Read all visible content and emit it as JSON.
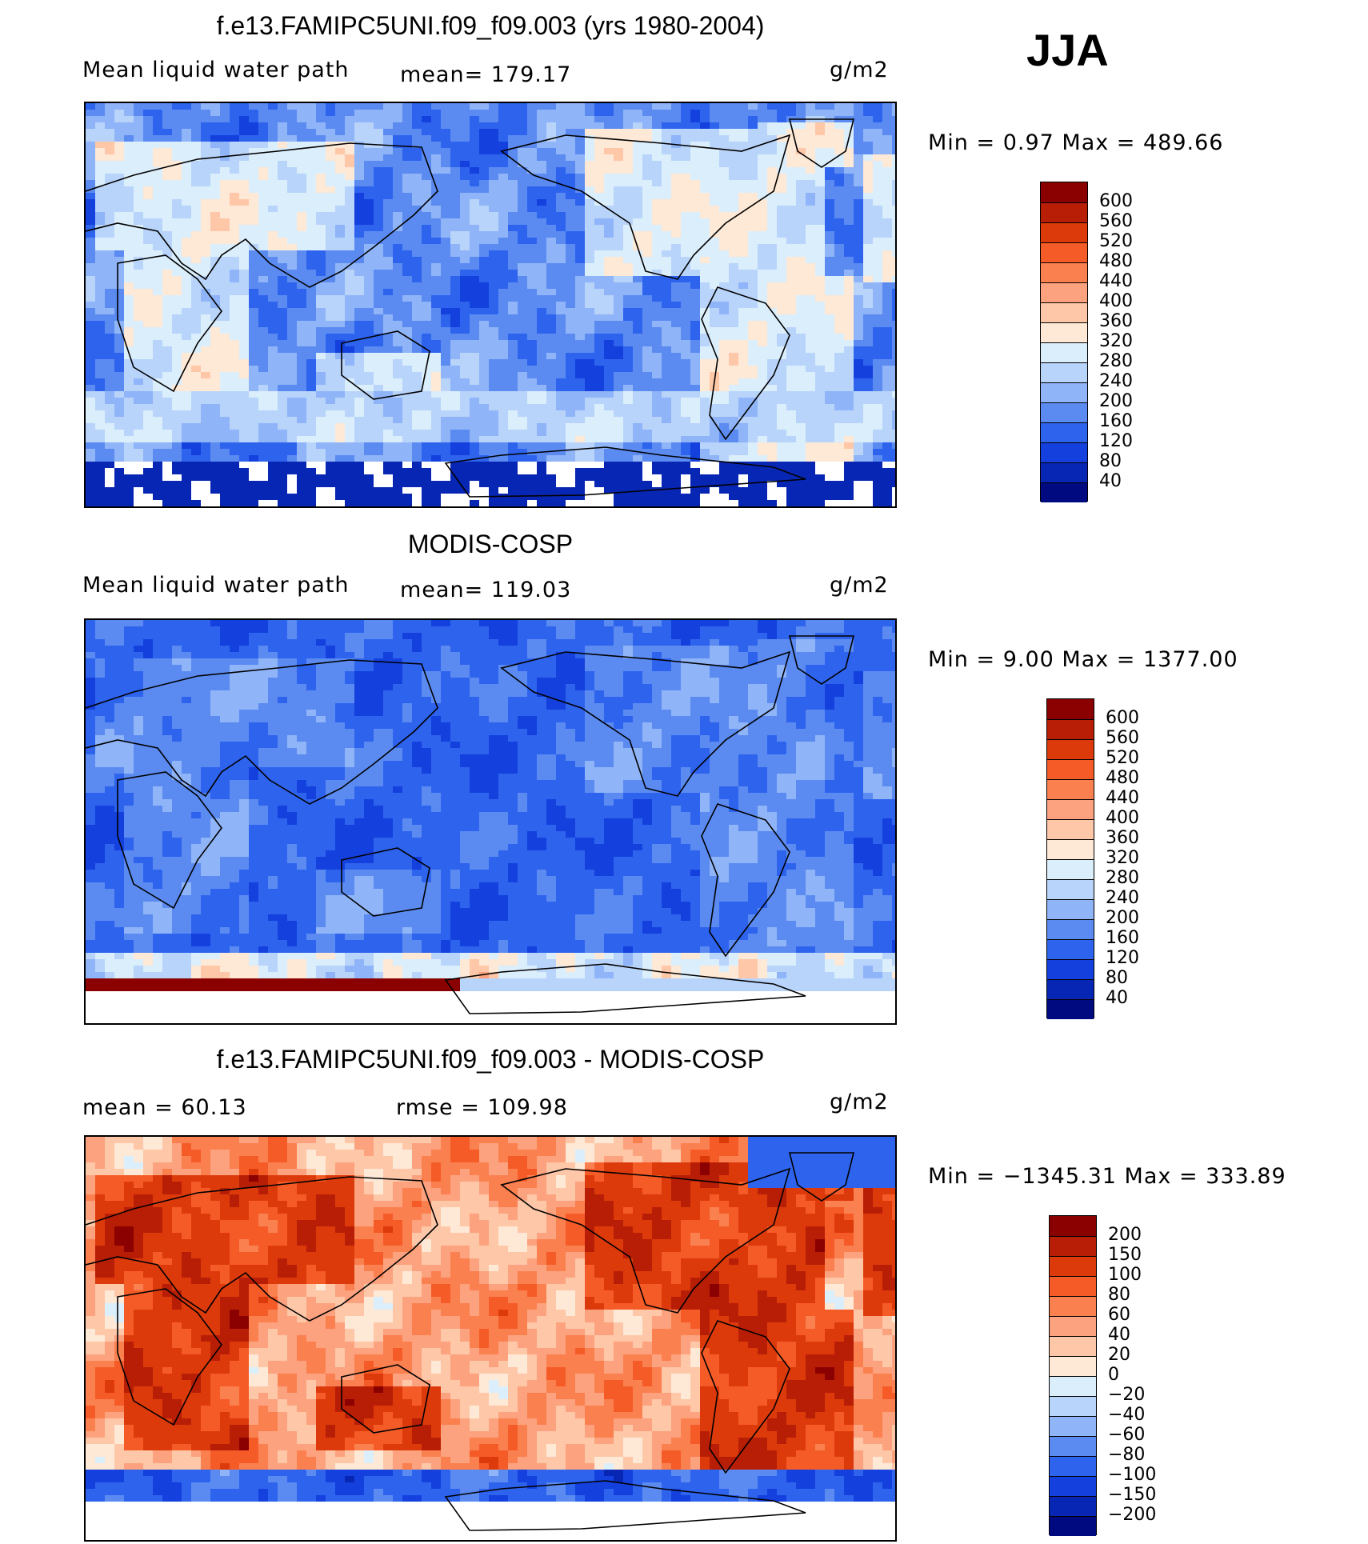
{
  "season": "JJA",
  "panels": [
    {
      "title": "f.e13.FAMIPC5UNI.f09_f09.003 (yrs 1980-2004)",
      "left_label": "Mean liquid water path",
      "center_label": "mean= 179.17",
      "units": "g/m2",
      "minmax": "Min =    0.97 Max = 489.66",
      "colorbar": {
        "colors": [
          "#8b0000",
          "#b81e06",
          "#dd3a0b",
          "#f55b27",
          "#fb8050",
          "#fca27e",
          "#fdc7a8",
          "#fee8d6",
          "#dbeefc",
          "#b9d4fa",
          "#8fb4f7",
          "#5b8bf1",
          "#2e63ee",
          "#1440dd",
          "#0826b4",
          "#000a80"
        ],
        "labels": [
          "600",
          "560",
          "520",
          "480",
          "440",
          "400",
          "360",
          "320",
          "280",
          "240",
          "200",
          "160",
          "120",
          "80",
          "40"
        ]
      },
      "map_style": "model"
    },
    {
      "title": "MODIS-COSP",
      "left_label": "Mean liquid water path",
      "center_label": "mean= 119.03",
      "units": "g/m2",
      "minmax": "Min =    9.00 Max = 1377.00",
      "colorbar": {
        "colors": [
          "#8b0000",
          "#b81e06",
          "#dd3a0b",
          "#f55b27",
          "#fb8050",
          "#fca27e",
          "#fdc7a8",
          "#fee8d6",
          "#dbeefc",
          "#b9d4fa",
          "#8fb4f7",
          "#5b8bf1",
          "#2e63ee",
          "#1440dd",
          "#0826b4",
          "#000a80"
        ],
        "labels": [
          "600",
          "560",
          "520",
          "480",
          "440",
          "400",
          "360",
          "320",
          "280",
          "240",
          "200",
          "160",
          "120",
          "80",
          "40"
        ]
      },
      "map_style": "obs"
    },
    {
      "title": "f.e13.FAMIPC5UNI.f09_f09.003 - MODIS-COSP",
      "left_label": "mean =   60.13",
      "center_label": "rmse = 109.98",
      "units": "g/m2",
      "minmax": "Min = −1345.31 Max = 333.89",
      "colorbar": {
        "colors": [
          "#8b0000",
          "#b81e06",
          "#dd3a0b",
          "#f55b27",
          "#fb8050",
          "#fca27e",
          "#fdc7a8",
          "#fee8d6",
          "#dbeefc",
          "#b9d4fa",
          "#8fb4f7",
          "#5b8bf1",
          "#2e63ee",
          "#1440dd",
          "#0826b4",
          "#000a80"
        ],
        "labels": [
          "200",
          "150",
          "100",
          "80",
          "60",
          "40",
          "20",
          "0",
          "−20",
          "−40",
          "−60",
          "−80",
          "−100",
          "−150",
          "−200"
        ]
      },
      "map_style": "diff"
    }
  ]
}
